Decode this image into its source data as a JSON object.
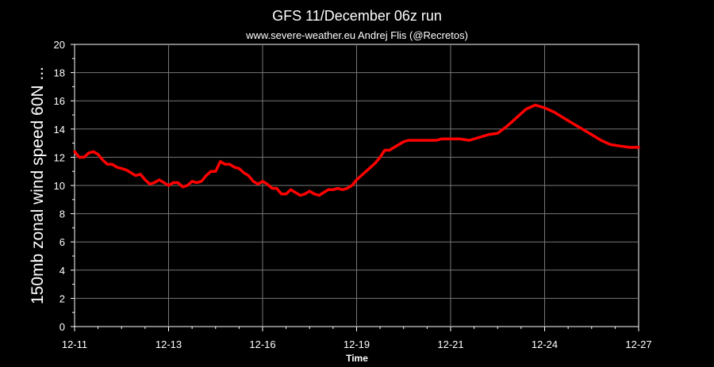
{
  "chart_data": {
    "type": "line",
    "title": "GFS 11/December 06z run",
    "subtitle": "www.severe-weather.eu  Andrej Flis (@Recretos)",
    "xlabel": "Time",
    "ylabel": "150mb zonal wind speed   60N   ...",
    "x_tick_labels": [
      "12-11",
      "12-13",
      "12-16",
      "12-19",
      "12-21",
      "12-24",
      "12-27"
    ],
    "x_tick_positions": [
      0,
      1,
      2,
      3,
      4,
      5,
      6
    ],
    "x_range": [
      0,
      6
    ],
    "ylim": [
      0,
      20
    ],
    "y_ticks": [
      0,
      2,
      4,
      6,
      8,
      10,
      12,
      14,
      16,
      18,
      20
    ],
    "grid": true,
    "line_color": "#ff0000",
    "grid_color": "#777777",
    "series": [
      {
        "x": [
          0,
          0.05,
          0.1,
          0.15,
          0.2,
          0.25,
          0.3,
          0.35,
          0.4,
          0.45,
          0.5,
          0.55,
          0.6,
          0.65,
          0.7,
          0.75,
          0.8,
          0.85,
          0.9,
          0.95,
          1.0,
          1.05,
          1.1,
          1.15,
          1.2,
          1.25,
          1.3,
          1.35,
          1.4,
          1.45,
          1.5,
          1.55,
          1.6,
          1.65,
          1.7,
          1.75,
          1.8,
          1.85,
          1.9,
          1.95,
          2.0,
          2.05,
          2.1,
          2.15,
          2.2,
          2.25,
          2.3,
          2.35,
          2.4,
          2.45,
          2.5,
          2.55,
          2.6,
          2.65,
          2.7,
          2.75,
          2.8,
          2.85,
          2.9,
          2.95,
          3.0,
          3.05,
          3.1,
          3.15,
          3.2,
          3.25,
          3.3,
          3.35,
          3.4,
          3.45,
          3.5,
          3.55,
          3.6,
          3.65,
          3.7,
          3.75,
          3.8,
          3.85,
          3.9,
          3.95,
          4.0,
          4.1,
          4.2,
          4.3,
          4.4,
          4.5,
          4.6,
          4.7,
          4.8,
          4.9,
          5.0,
          5.1,
          5.2,
          5.3,
          5.4,
          5.5,
          5.6,
          5.7,
          5.8,
          5.9,
          6.0
        ],
        "y": [
          12.4,
          12.0,
          12.0,
          12.3,
          12.4,
          12.2,
          11.8,
          11.5,
          11.5,
          11.3,
          11.2,
          11.1,
          10.9,
          10.7,
          10.8,
          10.4,
          10.1,
          10.2,
          10.4,
          10.2,
          10.0,
          10.2,
          10.2,
          9.9,
          10.0,
          10.3,
          10.2,
          10.3,
          10.7,
          11.0,
          11.0,
          11.7,
          11.5,
          11.5,
          11.3,
          11.2,
          10.9,
          10.7,
          10.3,
          10.1,
          10.3,
          10.1,
          9.8,
          9.8,
          9.4,
          9.4,
          9.7,
          9.5,
          9.3,
          9.4,
          9.6,
          9.4,
          9.3,
          9.5,
          9.7,
          9.7,
          9.8,
          9.7,
          9.8,
          10.0,
          10.4,
          10.7,
          11.0,
          11.3,
          11.6,
          12.0,
          12.5,
          12.5,
          12.7,
          12.9,
          13.1,
          13.2,
          13.2,
          13.2,
          13.2,
          13.2,
          13.2,
          13.2,
          13.3,
          13.3,
          13.3,
          13.3,
          13.2,
          13.4,
          13.6,
          13.7,
          14.2,
          14.8,
          15.4,
          15.7,
          15.5,
          15.2,
          14.8,
          14.4,
          14.0,
          13.6,
          13.2,
          12.9,
          12.8,
          12.7,
          12.7
        ]
      }
    ]
  }
}
